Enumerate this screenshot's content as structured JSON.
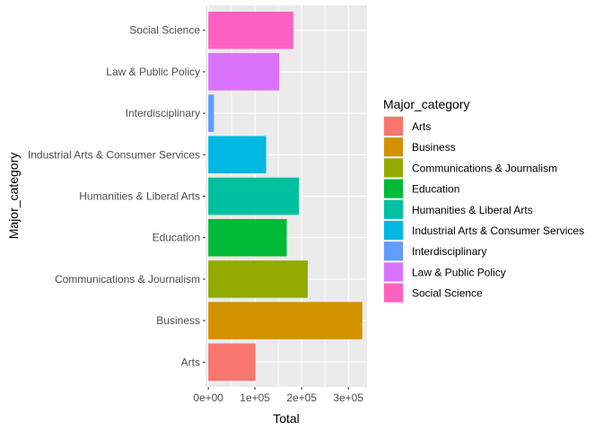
{
  "chart_data": {
    "type": "bar",
    "orientation": "horizontal",
    "xlabel": "Total",
    "ylabel": "Major_category",
    "xlim": [
      -6000,
      340000
    ],
    "x_ticks": [
      0,
      100000,
      200000,
      300000
    ],
    "x_tick_labels": [
      "0e+00",
      "1e+05",
      "2e+05",
      "3e+05"
    ],
    "grid": true,
    "legend_position": "right",
    "legend_title": "Major_category",
    "categories": [
      "Arts",
      "Business",
      "Communications & Journalism",
      "Education",
      "Humanities & Liberal Arts",
      "Industrial Arts & Consumer Services",
      "Interdisciplinary",
      "Law & Public Policy",
      "Social Science"
    ],
    "values": [
      101000,
      330000,
      213000,
      168000,
      194000,
      124000,
      12000,
      152000,
      182000
    ],
    "colors": [
      "#F8766D",
      "#D39200",
      "#93AA00",
      "#00BA38",
      "#00C19F",
      "#00B9E3",
      "#619CFF",
      "#DB72FB",
      "#FF61C3"
    ]
  }
}
